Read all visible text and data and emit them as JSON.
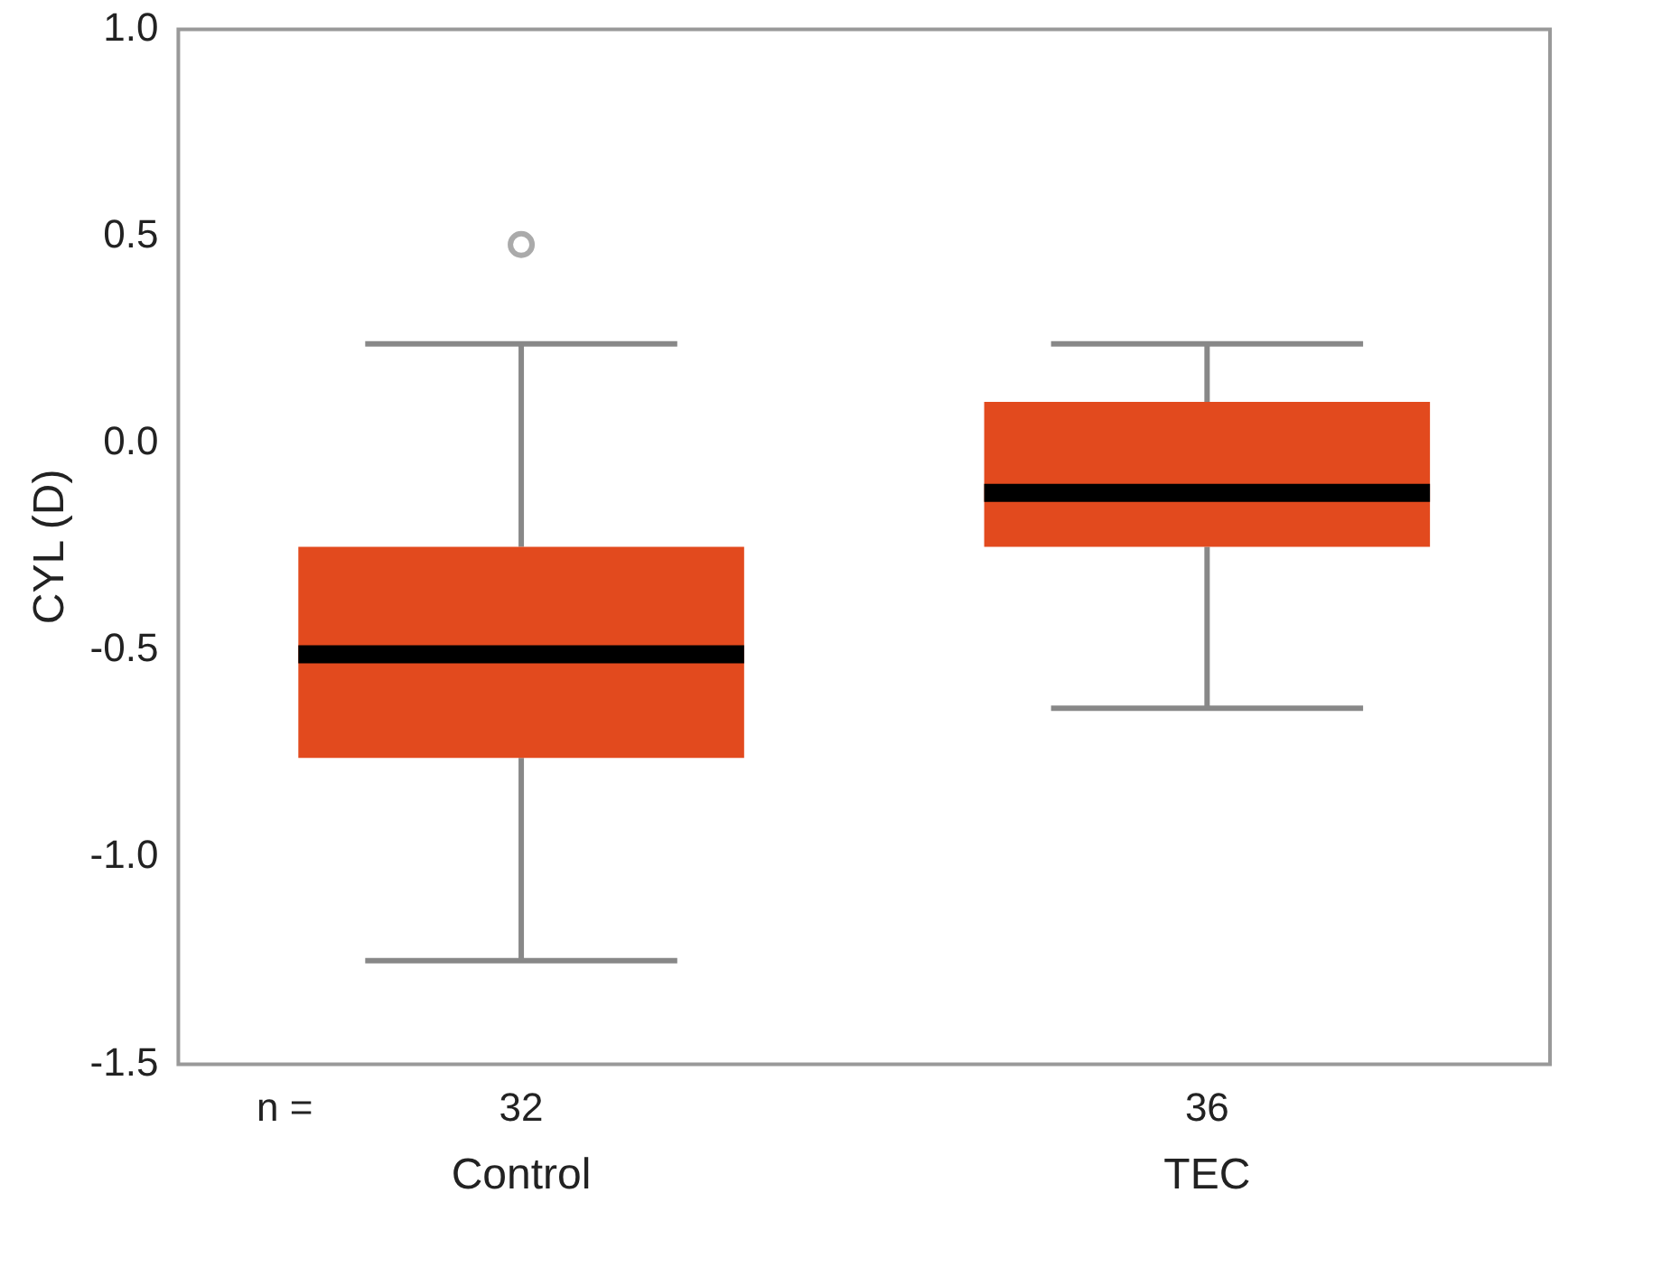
{
  "chart_data": {
    "type": "box",
    "ylabel": "CYL (D)",
    "categories": [
      "Control",
      "TEC"
    ],
    "series": [
      {
        "color": "#e24a1e",
        "boxes": [
          {
            "low": -1.25,
            "q1": -0.76,
            "median": -0.51,
            "q3": -0.25,
            "high": 0.24,
            "outliers": [
              0.48
            ]
          },
          {
            "low": -0.64,
            "q1": -0.25,
            "median": -0.12,
            "q3": 0.1,
            "high": 0.24
          }
        ]
      }
    ],
    "ylim": [
      -1.5,
      1.0
    ],
    "yticks": [
      {
        "value": -1.5,
        "label": "-1.5"
      },
      {
        "value": -1.0,
        "label": "-1.0"
      },
      {
        "value": -0.5,
        "label": "-0.5"
      },
      {
        "value": 0,
        "label": "0.0"
      },
      {
        "value": 0.5,
        "label": "0.5"
      },
      {
        "value": 1.0,
        "label": "1.0"
      }
    ],
    "grid": false,
    "legend": false,
    "annotations": [
      "n =",
      "32",
      "36"
    ]
  }
}
